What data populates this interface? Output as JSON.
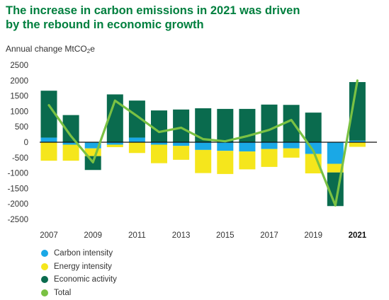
{
  "title_lines": [
    "The increase in carbon emissions in 2021 was driven",
    "by the rebound in economic growth"
  ],
  "y_axis_label": {
    "text": "Annual change MtCO",
    "sub": "2",
    "suffix": "e"
  },
  "colors": {
    "carbon_intensity": "#1aa8e6",
    "energy_intensity": "#f5e61c",
    "economic_activity": "#0a6b4e",
    "total": "#7ac143",
    "title": "#007f3e",
    "zero_line": "#111111",
    "grid": "#bdbdbd"
  },
  "chart_data": {
    "type": "bar",
    "stacked": true,
    "categories": [
      "2007",
      "2008",
      "2009",
      "2010",
      "2011",
      "2012",
      "2013",
      "2014",
      "2015",
      "2016",
      "2017",
      "2018",
      "2019",
      "2020",
      "2021"
    ],
    "x_tick_labels": [
      "2007",
      "",
      "2009",
      "",
      "2011",
      "",
      "2013",
      "",
      "2015",
      "",
      "2017",
      "",
      "2019",
      "",
      "2021"
    ],
    "bold_tick": "2021",
    "ylim": [
      -2500,
      2500
    ],
    "y_ticks": [
      2500,
      2000,
      1500,
      1000,
      500,
      0,
      -500,
      -1000,
      -1500,
      -2000,
      -2500
    ],
    "grid": false,
    "legend_position": "bottom-left",
    "series": [
      {
        "name": "Carbon intensity",
        "key": "carbon_intensity",
        "type": "bar",
        "values": [
          150,
          -80,
          -200,
          -80,
          150,
          -80,
          -120,
          -250,
          -280,
          -300,
          -220,
          -200,
          -380,
          -700,
          50
        ]
      },
      {
        "name": "Energy intensity",
        "key": "energy_intensity",
        "type": "bar",
        "values": [
          -600,
          -520,
          -250,
          -80,
          -350,
          -600,
          -450,
          -750,
          -750,
          -580,
          -580,
          -300,
          -630,
          -280,
          -150
        ]
      },
      {
        "name": "Economic activity",
        "key": "economic_activity",
        "type": "bar",
        "values": [
          1520,
          880,
          -450,
          1550,
          1200,
          1030,
          1060,
          1100,
          1080,
          1080,
          1220,
          1210,
          960,
          -1090,
          1900
        ]
      },
      {
        "name": "Total",
        "key": "total",
        "type": "line",
        "values": [
          1200,
          200,
          -650,
          1350,
          850,
          330,
          470,
          100,
          30,
          200,
          400,
          720,
          -280,
          -2050,
          2000
        ]
      }
    ]
  }
}
